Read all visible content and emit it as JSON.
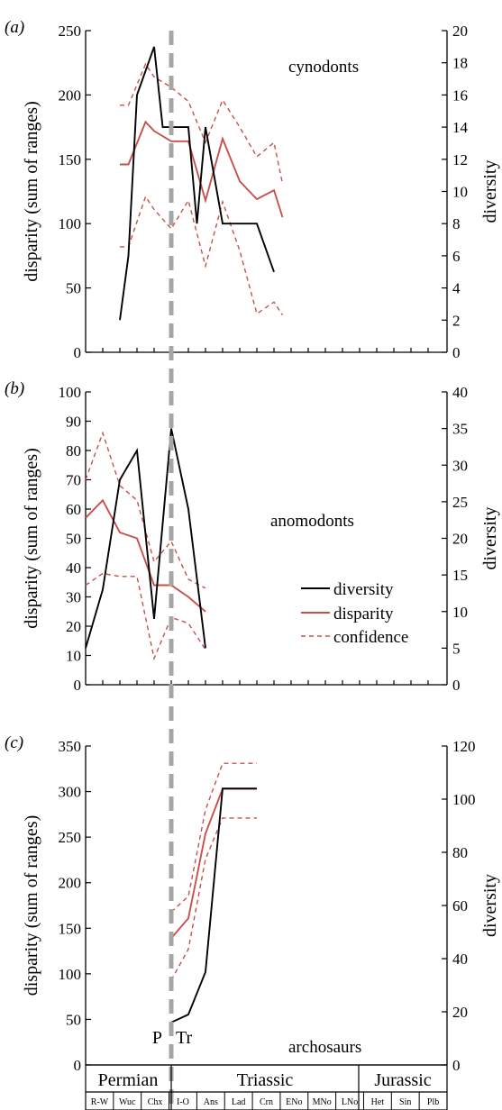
{
  "colors": {
    "diversity": "#000000",
    "disparity": "#c8504b",
    "confidence": "#c8504b",
    "boundary": "#a6a6a6"
  },
  "legend": {
    "diversity": "diversity",
    "disparity": "disparity",
    "confidence": "confidence"
  },
  "boundary_label": {
    "left": "P",
    "right": "Tr"
  },
  "timescale": {
    "periods": [
      {
        "name": "Permian",
        "stages": [
          "R-W",
          "Wuc",
          "Chx"
        ]
      },
      {
        "name": "Triassic",
        "stages": [
          "I-O",
          "Ans",
          "Lad",
          "Crn",
          "ENo",
          "MNo",
          "LNo"
        ]
      },
      {
        "name": "Jurassic",
        "stages": [
          "Het",
          "Sin",
          "Plb"
        ]
      }
    ]
  },
  "chart_data": [
    {
      "panel_label": "(a)",
      "title": "cynodonts",
      "type": "line",
      "ylabel": "disparity (sum of ranges)",
      "y2label": "diversity",
      "ylim": [
        0,
        250
      ],
      "yticks": [
        0,
        50,
        100,
        150,
        200,
        250
      ],
      "y2lim": [
        0,
        20
      ],
      "y2ticks": [
        0,
        2,
        4,
        6,
        8,
        10,
        12,
        14,
        16,
        18,
        20
      ],
      "diversity": [
        [
          2.0,
          2
        ],
        [
          2.5,
          6
        ],
        [
          3.0,
          16
        ],
        [
          4.0,
          19
        ],
        [
          4.5,
          14
        ],
        [
          6.0,
          14
        ],
        [
          6.5,
          8
        ],
        [
          7.0,
          14
        ],
        [
          8.0,
          8
        ],
        [
          10.0,
          8
        ],
        [
          11.0,
          5
        ]
      ],
      "disparity": [
        [
          2.0,
          146
        ],
        [
          2.5,
          146
        ],
        [
          3.5,
          179
        ],
        [
          4.0,
          172
        ],
        [
          5.0,
          164
        ],
        [
          6.0,
          164
        ],
        [
          7.0,
          118
        ],
        [
          8.0,
          166
        ],
        [
          9.0,
          133
        ],
        [
          10.0,
          119
        ],
        [
          11.0,
          126
        ],
        [
          11.5,
          105
        ]
      ],
      "confidence_upper": [
        [
          2.0,
          192
        ],
        [
          2.5,
          192
        ],
        [
          3.5,
          224
        ],
        [
          4.0,
          214
        ],
        [
          5.0,
          206
        ],
        [
          6.0,
          195
        ],
        [
          7.0,
          163
        ],
        [
          8.0,
          196
        ],
        [
          9.0,
          175
        ],
        [
          10.0,
          152
        ],
        [
          11.0,
          163
        ],
        [
          11.5,
          131
        ]
      ],
      "confidence_lower": [
        [
          2.0,
          82
        ],
        [
          2.5,
          82
        ],
        [
          3.5,
          121
        ],
        [
          4.0,
          111
        ],
        [
          5.0,
          96
        ],
        [
          6.0,
          118
        ],
        [
          7.0,
          67
        ],
        [
          8.0,
          117
        ],
        [
          9.0,
          79
        ],
        [
          10.0,
          30
        ],
        [
          11.0,
          39
        ],
        [
          11.5,
          29
        ]
      ]
    },
    {
      "panel_label": "(b)",
      "title": "anomodonts",
      "type": "line",
      "ylabel": "disparity (sum of ranges)",
      "y2label": "diversity",
      "ylim": [
        0,
        100
      ],
      "yticks": [
        0,
        10,
        20,
        30,
        40,
        50,
        60,
        70,
        80,
        90,
        100
      ],
      "y2lim": [
        0,
        40
      ],
      "y2ticks": [
        0,
        5,
        10,
        15,
        20,
        25,
        30,
        35,
        40
      ],
      "diversity": [
        [
          0.0,
          5
        ],
        [
          1.0,
          13
        ],
        [
          2.0,
          28
        ],
        [
          3.0,
          32
        ],
        [
          4.0,
          9
        ],
        [
          5.0,
          35
        ],
        [
          6.0,
          24
        ],
        [
          7.0,
          5
        ]
      ],
      "disparity": [
        [
          0.0,
          57
        ],
        [
          1.0,
          63
        ],
        [
          2.0,
          52
        ],
        [
          3.0,
          50
        ],
        [
          4.0,
          34
        ],
        [
          5.0,
          34
        ],
        [
          6.0,
          30
        ],
        [
          7.0,
          25
        ]
      ],
      "confidence_upper": [
        [
          0.0,
          70
        ],
        [
          1.0,
          86
        ],
        [
          2.0,
          68
        ],
        [
          3.0,
          63
        ],
        [
          4.0,
          42
        ],
        [
          5.0,
          49
        ],
        [
          6.0,
          36
        ],
        [
          7.0,
          33
        ]
      ],
      "confidence_lower": [
        [
          0.0,
          34
        ],
        [
          1.0,
          38
        ],
        [
          2.0,
          37
        ],
        [
          3.0,
          37
        ],
        [
          4.0,
          9
        ],
        [
          5.0,
          23
        ],
        [
          6.0,
          21
        ],
        [
          7.0,
          12
        ]
      ]
    },
    {
      "panel_label": "(c)",
      "title": "archosaurs",
      "type": "line",
      "ylabel": "disparity (sum of ranges)",
      "y2label": "diversity",
      "ylim": [
        0,
        350
      ],
      "yticks": [
        0,
        50,
        100,
        150,
        200,
        250,
        300,
        350
      ],
      "y2lim": [
        0,
        120
      ],
      "y2ticks": [
        0,
        20,
        40,
        60,
        80,
        100,
        120
      ],
      "diversity": [
        [
          5.0,
          16
        ],
        [
          6.0,
          19
        ],
        [
          7.0,
          35
        ],
        [
          8.0,
          104
        ],
        [
          10.0,
          104
        ]
      ],
      "disparity": [
        [
          5.0,
          139
        ],
        [
          6.0,
          161
        ],
        [
          7.0,
          254
        ],
        [
          8.0,
          303
        ],
        [
          10.0,
          303
        ]
      ],
      "confidence_upper": [
        [
          5.0,
          168
        ],
        [
          6.0,
          185
        ],
        [
          7.0,
          280
        ],
        [
          8.0,
          331
        ],
        [
          10.0,
          331
        ]
      ],
      "confidence_lower": [
        [
          5.0,
          93
        ],
        [
          6.0,
          127
        ],
        [
          7.0,
          226
        ],
        [
          8.0,
          271
        ],
        [
          10.0,
          271
        ]
      ]
    }
  ]
}
